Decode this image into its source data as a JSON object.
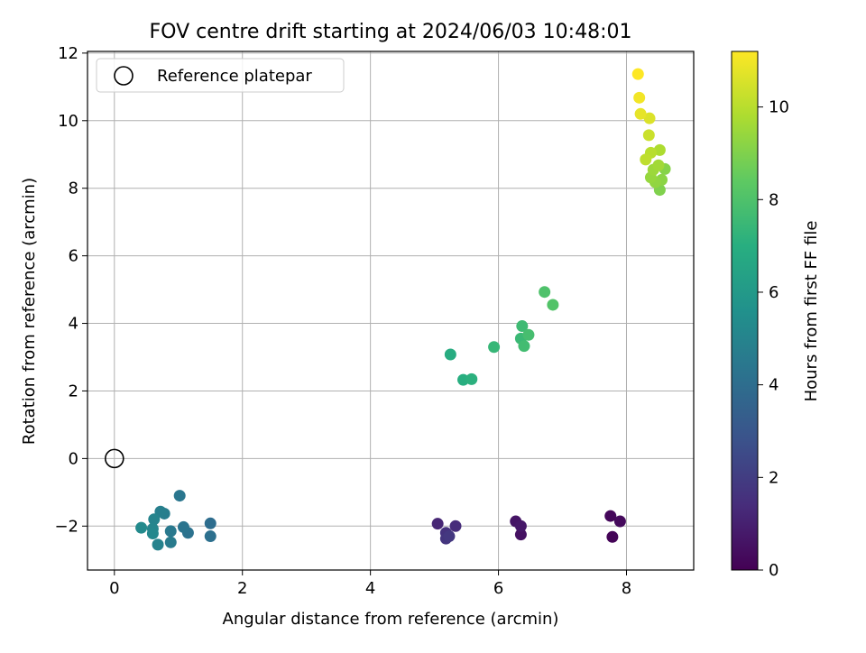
{
  "chart_data": {
    "type": "scatter",
    "title": "FOV centre drift starting at 2024/06/03 10:48:01",
    "xlabel": "Angular distance from reference (arcmin)",
    "ylabel": "Rotation from reference (arcmin)",
    "xlim": [
      -0.42,
      9.05
    ],
    "ylim": [
      -3.3,
      12.05
    ],
    "x_ticks": [
      0,
      2,
      4,
      6,
      8
    ],
    "y_ticks": [
      -2,
      0,
      2,
      4,
      6,
      8,
      10,
      12
    ],
    "grid": true,
    "legend": {
      "placement": "top-left",
      "entries": [
        "Reference platepar"
      ]
    },
    "reference_point": {
      "name": "Reference platepar",
      "x": 0,
      "y": 0
    },
    "colorbar": {
      "label": "Hours from first FF file",
      "range": [
        0,
        11.2
      ],
      "ticks": [
        0,
        2,
        4,
        6,
        8,
        10
      ],
      "colormap": "viridis"
    },
    "points": [
      {
        "x": 7.78,
        "y": -2.32,
        "hours": 0.1
      },
      {
        "x": 7.75,
        "y": -1.7,
        "hours": 0.2
      },
      {
        "x": 7.9,
        "y": -1.86,
        "hours": 0.3
      },
      {
        "x": 6.35,
        "y": -2.25,
        "hours": 0.5
      },
      {
        "x": 6.27,
        "y": -1.86,
        "hours": 0.6
      },
      {
        "x": 6.35,
        "y": -2.0,
        "hours": 0.7
      },
      {
        "x": 5.05,
        "y": -1.93,
        "hours": 1.2
      },
      {
        "x": 5.33,
        "y": -2.0,
        "hours": 1.4
      },
      {
        "x": 5.18,
        "y": -2.2,
        "hours": 1.6
      },
      {
        "x": 5.18,
        "y": -2.37,
        "hours": 1.7
      },
      {
        "x": 5.23,
        "y": -2.3,
        "hours": 1.8
      },
      {
        "x": 1.5,
        "y": -1.92,
        "hours": 4.0
      },
      {
        "x": 1.5,
        "y": -2.3,
        "hours": 4.1
      },
      {
        "x": 1.15,
        "y": -2.2,
        "hours": 4.2
      },
      {
        "x": 1.08,
        "y": -2.03,
        "hours": 4.3
      },
      {
        "x": 1.02,
        "y": -1.1,
        "hours": 4.4
      },
      {
        "x": 0.88,
        "y": -2.15,
        "hours": 4.5
      },
      {
        "x": 0.88,
        "y": -2.48,
        "hours": 4.6
      },
      {
        "x": 0.78,
        "y": -1.63,
        "hours": 4.7
      },
      {
        "x": 0.72,
        "y": -1.57,
        "hours": 4.8
      },
      {
        "x": 0.68,
        "y": -2.55,
        "hours": 4.9
      },
      {
        "x": 0.62,
        "y": -1.8,
        "hours": 5.0
      },
      {
        "x": 0.6,
        "y": -2.08,
        "hours": 5.1
      },
      {
        "x": 0.6,
        "y": -2.22,
        "hours": 5.2
      },
      {
        "x": 0.42,
        "y": -2.05,
        "hours": 5.3
      },
      {
        "x": 5.25,
        "y": 3.08,
        "hours": 6.9
      },
      {
        "x": 5.45,
        "y": 2.33,
        "hours": 7.0
      },
      {
        "x": 5.58,
        "y": 2.35,
        "hours": 7.1
      },
      {
        "x": 5.93,
        "y": 3.3,
        "hours": 7.4
      },
      {
        "x": 6.35,
        "y": 3.55,
        "hours": 7.5
      },
      {
        "x": 6.37,
        "y": 3.92,
        "hours": 7.6
      },
      {
        "x": 6.4,
        "y": 3.33,
        "hours": 7.7
      },
      {
        "x": 6.47,
        "y": 3.66,
        "hours": 7.8
      },
      {
        "x": 6.72,
        "y": 4.93,
        "hours": 8.0
      },
      {
        "x": 6.85,
        "y": 4.55,
        "hours": 8.1
      },
      {
        "x": 8.52,
        "y": 7.95,
        "hours": 9.0
      },
      {
        "x": 8.6,
        "y": 8.57,
        "hours": 9.1
      },
      {
        "x": 8.55,
        "y": 8.25,
        "hours": 9.2
      },
      {
        "x": 8.45,
        "y": 8.18,
        "hours": 9.3
      },
      {
        "x": 8.38,
        "y": 8.32,
        "hours": 9.4
      },
      {
        "x": 8.42,
        "y": 8.55,
        "hours": 9.5
      },
      {
        "x": 8.5,
        "y": 8.68,
        "hours": 9.6
      },
      {
        "x": 8.52,
        "y": 9.13,
        "hours": 9.8
      },
      {
        "x": 8.38,
        "y": 9.05,
        "hours": 10.0
      },
      {
        "x": 8.3,
        "y": 8.85,
        "hours": 10.1
      },
      {
        "x": 8.35,
        "y": 9.57,
        "hours": 10.3
      },
      {
        "x": 8.36,
        "y": 10.07,
        "hours": 10.6
      },
      {
        "x": 8.22,
        "y": 10.2,
        "hours": 10.8
      },
      {
        "x": 8.2,
        "y": 10.68,
        "hours": 11.0
      },
      {
        "x": 8.18,
        "y": 11.38,
        "hours": 11.2
      }
    ]
  }
}
